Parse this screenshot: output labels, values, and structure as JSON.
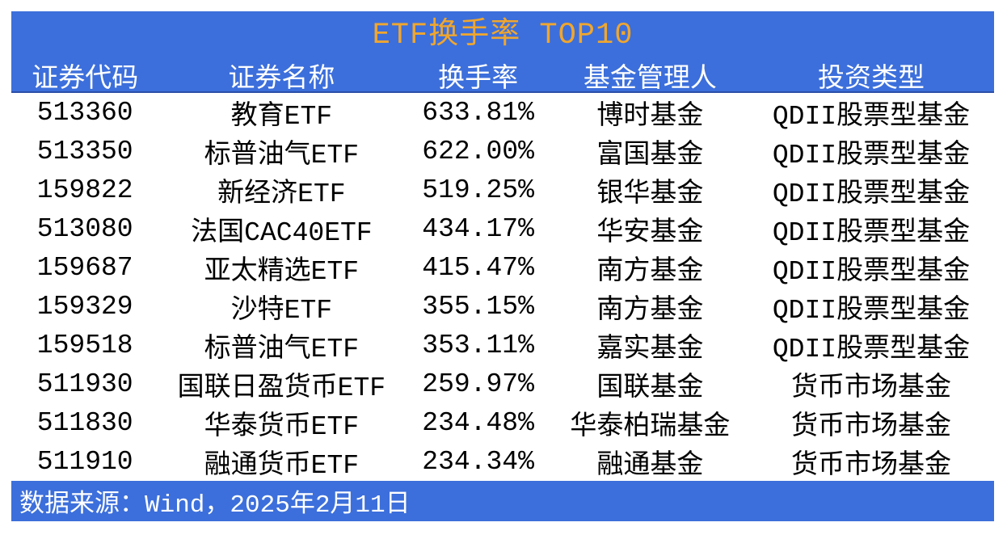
{
  "title": "ETF换手率 TOP10",
  "colors": {
    "header_bg": "#3C6FDB",
    "header_border_bottom": "#2B4FA8",
    "title_text": "#F0A62E",
    "header_text": "#FFFFFF",
    "body_text": "#000000",
    "footer_bg": "#3C6FDB",
    "footer_text": "#FFFFFF",
    "page_bg": "#FFFFFF"
  },
  "chart_data": {
    "type": "table",
    "title": "ETF换手率 TOP10",
    "columns": [
      "证券代码",
      "证券名称",
      "换手率",
      "基金管理人",
      "投资类型"
    ],
    "rows": [
      {
        "code": "513360",
        "name": "教育ETF",
        "turnover": "633.81%",
        "manager": "博时基金",
        "type": "QDII股票型基金"
      },
      {
        "code": "513350",
        "name": "标普油气ETF",
        "turnover": "622.00%",
        "manager": "富国基金",
        "type": "QDII股票型基金"
      },
      {
        "code": "159822",
        "name": "新经济ETF",
        "turnover": "519.25%",
        "manager": "银华基金",
        "type": "QDII股票型基金"
      },
      {
        "code": "513080",
        "name": "法国CAC40ETF",
        "turnover": "434.17%",
        "manager": "华安基金",
        "type": "QDII股票型基金"
      },
      {
        "code": "159687",
        "name": "亚太精选ETF",
        "turnover": "415.47%",
        "manager": "南方基金",
        "type": "QDII股票型基金"
      },
      {
        "code": "159329",
        "name": "沙特ETF",
        "turnover": "355.15%",
        "manager": "南方基金",
        "type": "QDII股票型基金"
      },
      {
        "code": "159518",
        "name": "标普油气ETF",
        "turnover": "353.11%",
        "manager": "嘉实基金",
        "type": "QDII股票型基金"
      },
      {
        "code": "511930",
        "name": "国联日盈货币ETF",
        "turnover": "259.97%",
        "manager": "国联基金",
        "type": "货币市场基金"
      },
      {
        "code": "511830",
        "name": "华泰货币ETF",
        "turnover": "234.48%",
        "manager": "华泰柏瑞基金",
        "type": "货币市场基金"
      },
      {
        "code": "511910",
        "name": "融通货币ETF",
        "turnover": "234.34%",
        "manager": "融通基金",
        "type": "货币市场基金"
      }
    ],
    "turnover_values_pct": [
      633.81,
      622.0,
      519.25,
      434.17,
      415.47,
      355.15,
      353.11,
      259.97,
      234.48,
      234.34
    ]
  },
  "footer": {
    "text": "数据来源：Wind，2025年2月11日"
  }
}
